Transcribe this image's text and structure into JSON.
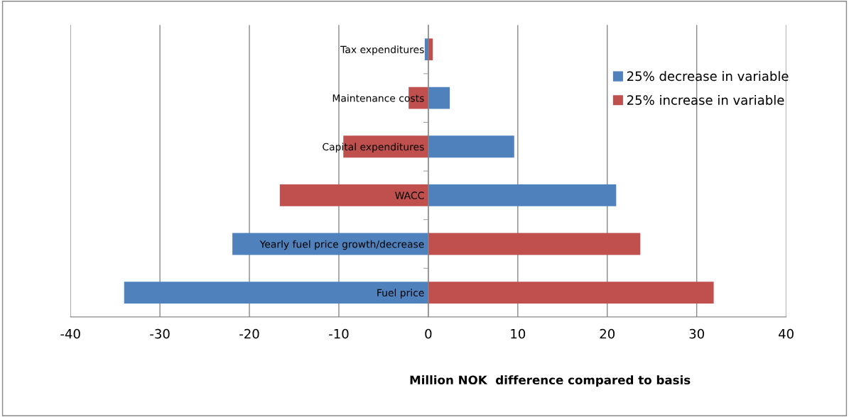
{
  "chart_data": {
    "type": "bar",
    "orientation": "horizontal",
    "xlabel": "Million NOK  difference compared to basis",
    "categories": [
      "Tax expenditures",
      "Maintenance costs",
      "Capital expenditures",
      "WACC",
      "Yearly fuel price growth/decrease",
      "Fuel price"
    ],
    "series": [
      {
        "name": "25% decrease in variable",
        "color": "#4f81bd",
        "values": [
          -0.4,
          2.4,
          9.6,
          21.0,
          -21.9,
          -34.0
        ]
      },
      {
        "name": "25% increase in variable",
        "color": "#c0504d",
        "values": [
          0.5,
          -2.2,
          -9.5,
          -16.6,
          23.7,
          31.9
        ]
      }
    ],
    "stacked": true,
    "xlim": [
      -40,
      40
    ],
    "xticks": [
      -40,
      -30,
      -20,
      -10,
      0,
      10,
      20,
      30,
      40
    ],
    "grid": "x",
    "legend": "right"
  }
}
